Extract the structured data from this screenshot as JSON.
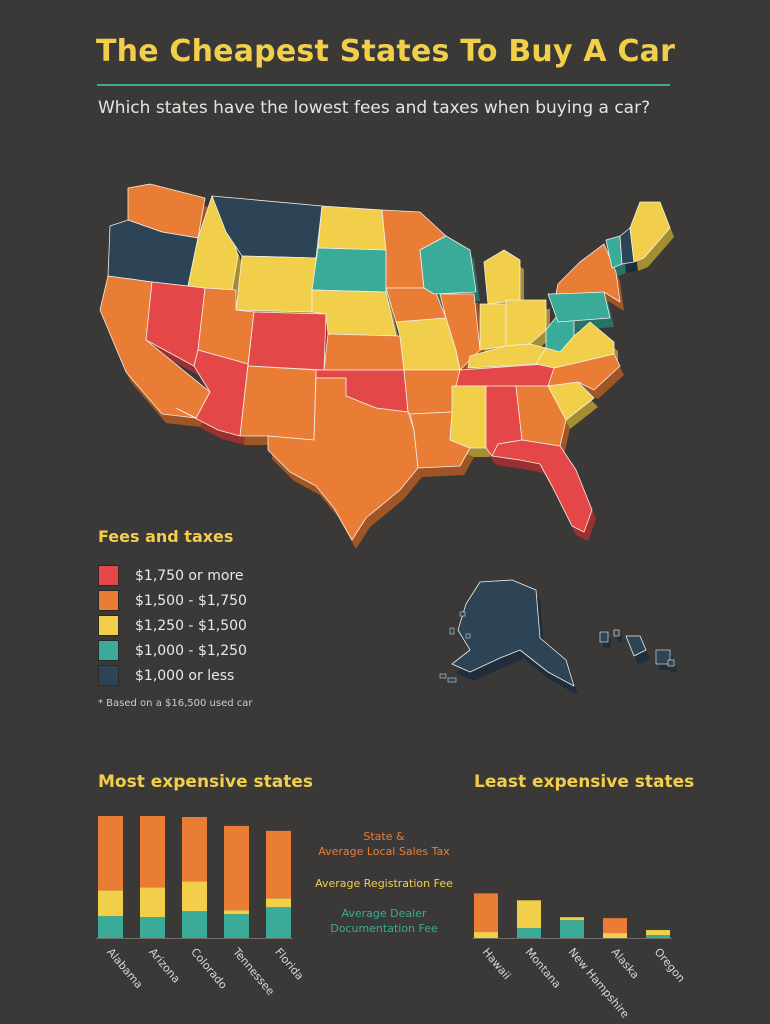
{
  "title": "The Cheapest States To Buy A Car",
  "subtitle": "Which states have the lowest fees and taxes when buying a car?",
  "colors": {
    "red": "#e34748",
    "orange": "#ea7d36",
    "yellow": "#f2cf4a",
    "teal": "#3aab98",
    "navy": "#2d4356",
    "background": "#3a3938"
  },
  "legend": {
    "title": "Fees and taxes",
    "items": [
      {
        "label": "$1,750 or more",
        "color": "#e34748"
      },
      {
        "label": "$1,500 - $1,750",
        "color": "#ea7d36"
      },
      {
        "label": "$1,250 - $1,500",
        "color": "#f2cf4a"
      },
      {
        "label": "$1,000 - $1,250",
        "color": "#3aab98"
      },
      {
        "label": "$1,000 or less",
        "color": "#2d4356"
      }
    ],
    "footnote": "* Based on a $16,500 used car"
  },
  "series_key": {
    "sales": "State & Average Local Sales Tax",
    "sales_line1": "State &",
    "sales_line2": "Average Local Sales Tax",
    "registration": "Average Registration Fee",
    "documentation_line1": "Average Dealer",
    "documentation_line2": "Documentation Fee"
  },
  "map_regions": [
    {
      "name": "Washington",
      "tier": "orange"
    },
    {
      "name": "Oregon",
      "tier": "navy"
    },
    {
      "name": "California",
      "tier": "orange"
    },
    {
      "name": "Nevada",
      "tier": "red"
    },
    {
      "name": "Idaho",
      "tier": "yellow"
    },
    {
      "name": "Montana",
      "tier": "navy"
    },
    {
      "name": "Wyoming",
      "tier": "yellow"
    },
    {
      "name": "Utah",
      "tier": "orange"
    },
    {
      "name": "Arizona",
      "tier": "red"
    },
    {
      "name": "Colorado",
      "tier": "red"
    },
    {
      "name": "New Mexico",
      "tier": "orange"
    },
    {
      "name": "North Dakota",
      "tier": "yellow"
    },
    {
      "name": "South Dakota",
      "tier": "teal"
    },
    {
      "name": "Nebraska",
      "tier": "yellow"
    },
    {
      "name": "Kansas",
      "tier": "orange"
    },
    {
      "name": "Oklahoma",
      "tier": "red"
    },
    {
      "name": "Texas",
      "tier": "orange"
    },
    {
      "name": "Minnesota",
      "tier": "orange"
    },
    {
      "name": "Iowa",
      "tier": "orange"
    },
    {
      "name": "Missouri",
      "tier": "yellow"
    },
    {
      "name": "Arkansas",
      "tier": "orange"
    },
    {
      "name": "Louisiana",
      "tier": "orange"
    },
    {
      "name": "Wisconsin",
      "tier": "teal"
    },
    {
      "name": "Illinois",
      "tier": "orange"
    },
    {
      "name": "Michigan",
      "tier": "yellow"
    },
    {
      "name": "Indiana",
      "tier": "yellow"
    },
    {
      "name": "Ohio",
      "tier": "yellow"
    },
    {
      "name": "Kentucky",
      "tier": "yellow"
    },
    {
      "name": "Tennessee",
      "tier": "red"
    },
    {
      "name": "Mississippi",
      "tier": "yellow"
    },
    {
      "name": "Alabama",
      "tier": "red"
    },
    {
      "name": "Georgia",
      "tier": "orange"
    },
    {
      "name": "Florida",
      "tier": "red"
    },
    {
      "name": "South Carolina",
      "tier": "yellow"
    },
    {
      "name": "North Carolina",
      "tier": "orange"
    },
    {
      "name": "Virginia",
      "tier": "yellow"
    },
    {
      "name": "West Virginia",
      "tier": "teal"
    },
    {
      "name": "Pennsylvania",
      "tier": "teal"
    },
    {
      "name": "New York",
      "tier": "orange"
    },
    {
      "name": "Vermont",
      "tier": "teal"
    },
    {
      "name": "New Hampshire",
      "tier": "navy"
    },
    {
      "name": "Maine",
      "tier": "yellow"
    },
    {
      "name": "Alaska",
      "tier": "navy"
    },
    {
      "name": "Hawaii",
      "tier": "navy"
    }
  ],
  "chart_data": [
    {
      "type": "bar",
      "stacked": true,
      "title": "Most expensive states",
      "categories": [
        "Alabama",
        "Arizona",
        "Colorado",
        "Tennessee",
        "Florida"
      ],
      "series": [
        {
          "name": "Average Dealer Documentation Fee",
          "color": "#3aab98",
          "values": [
            22,
            21,
            27,
            24,
            31
          ]
        },
        {
          "name": "Average Registration Fee",
          "color": "#f2cf4a",
          "values": [
            26,
            30,
            30,
            4,
            9
          ]
        },
        {
          "name": "State & Average Local Sales Tax",
          "color": "#ea7d36",
          "values": [
            75,
            72,
            65,
            85,
            68
          ]
        }
      ],
      "ylim": [
        0,
        125
      ]
    },
    {
      "type": "bar",
      "stacked": true,
      "title": "Least expensive states",
      "categories": [
        "Hawaii",
        "Montana",
        "New Hampshire",
        "Alaska",
        "Oregon"
      ],
      "series": [
        {
          "name": "Average Dealer Documentation Fee",
          "color": "#3aab98",
          "values": [
            0,
            10,
            18,
            0,
            3
          ]
        },
        {
          "name": "Average Registration Fee",
          "color": "#f2cf4a",
          "values": [
            6,
            28,
            3,
            5,
            5
          ]
        },
        {
          "name": "State & Average Local Sales Tax",
          "color": "#ea7d36",
          "values": [
            39,
            0,
            0,
            15,
            0
          ]
        }
      ],
      "ylim": [
        0,
        125
      ]
    }
  ]
}
